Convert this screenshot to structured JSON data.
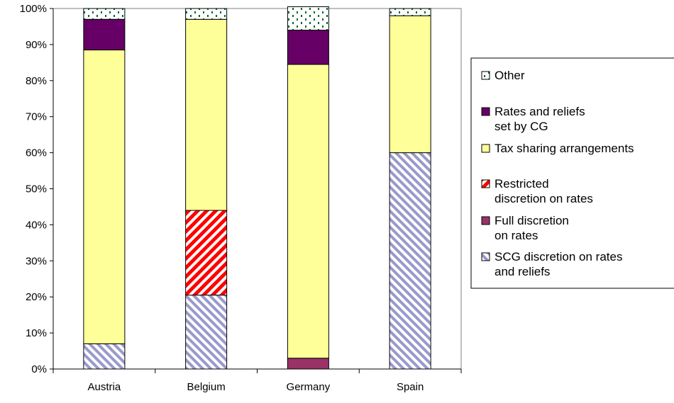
{
  "chart_data": {
    "type": "bar",
    "stacked": true,
    "categories": [
      "Austria",
      "Belgium",
      "Germany",
      "Spain"
    ],
    "ylim": [
      0,
      100
    ],
    "yticks": [
      "0%",
      "10%",
      "20%",
      "30%",
      "40%",
      "50%",
      "60%",
      "70%",
      "80%",
      "90%",
      "100%"
    ],
    "legend_position": "right",
    "series": [
      {
        "key": "scg",
        "name": "SCG discretion on rates and reliefs",
        "name_lines": [
          "SCG discretion on rates",
          "and reliefs"
        ],
        "values": [
          7,
          20.5,
          0,
          60
        ],
        "color": "#9999cc",
        "pattern": "diag-blue"
      },
      {
        "key": "full",
        "name": "Full discretion on rates",
        "name_lines": [
          "Full discretion",
          "on rates"
        ],
        "values": [
          0,
          0,
          3,
          0
        ],
        "color": "#993366",
        "pattern": "solid"
      },
      {
        "key": "restricted",
        "name": "Restricted discretion on rates",
        "name_lines": [
          "Restricted",
          "discretion on rates"
        ],
        "values": [
          0,
          23.5,
          0,
          0
        ],
        "color": "#ff0000",
        "pattern": "diag-red"
      },
      {
        "key": "tax",
        "name": "Tax sharing arrangements",
        "name_lines": [
          "Tax sharing arrangements"
        ],
        "values": [
          81.5,
          53,
          81.5,
          38
        ],
        "color": "#ffff99",
        "pattern": "solid"
      },
      {
        "key": "cg",
        "name": "Rates and reliefs set by CG",
        "name_lines": [
          "Rates and reliefs",
          "set by CG"
        ],
        "values": [
          8.5,
          0,
          9.5,
          0
        ],
        "color": "#660066",
        "pattern": "solid"
      },
      {
        "key": "other",
        "name": "Other",
        "name_lines": [
          "Other"
        ],
        "values": [
          3,
          3,
          6.5,
          2
        ],
        "color": "#006633",
        "pattern": "dots-green"
      }
    ],
    "legend_order": [
      "other",
      "cg",
      "tax",
      "restricted",
      "full",
      "scg"
    ]
  }
}
